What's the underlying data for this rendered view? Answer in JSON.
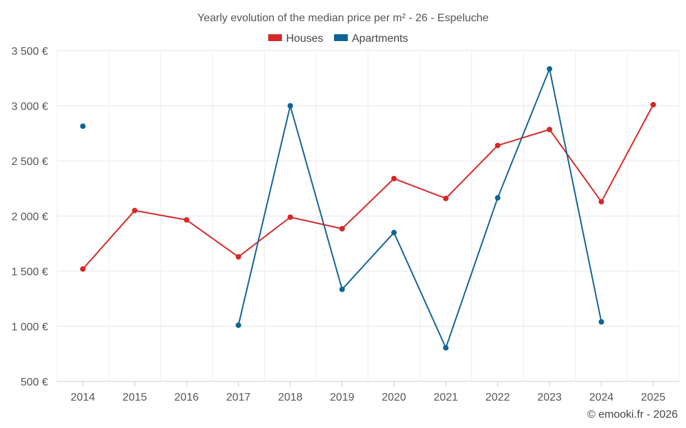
{
  "chart_data": {
    "type": "line",
    "title": "Yearly evolution of the median price per m² - 26 - Espeluche",
    "categories": [
      "2014",
      "2015",
      "2016",
      "2017",
      "2018",
      "2019",
      "2020",
      "2021",
      "2022",
      "2023",
      "2024",
      "2025"
    ],
    "ylim": [
      500,
      3500
    ],
    "yticks": [
      500,
      1000,
      1500,
      2000,
      2500,
      3000,
      3500
    ],
    "ytick_labels": [
      "500 €",
      "1 000 €",
      "1 500 €",
      "2 000 €",
      "2 500 €",
      "3 000 €",
      "3 500 €"
    ],
    "legend_position": "top-center",
    "grid": true,
    "series": [
      {
        "name": "Houses",
        "color": "#d62728",
        "values": [
          1520,
          2050,
          1965,
          1630,
          1990,
          1885,
          2340,
          2160,
          2640,
          2785,
          2130,
          3010
        ]
      },
      {
        "name": "Apartments",
        "color": "#0e6496",
        "values": [
          2815,
          null,
          null,
          1010,
          3000,
          1335,
          1850,
          805,
          2165,
          3335,
          1040,
          null
        ]
      }
    ]
  },
  "credit": "© emooki.fr - 2026"
}
